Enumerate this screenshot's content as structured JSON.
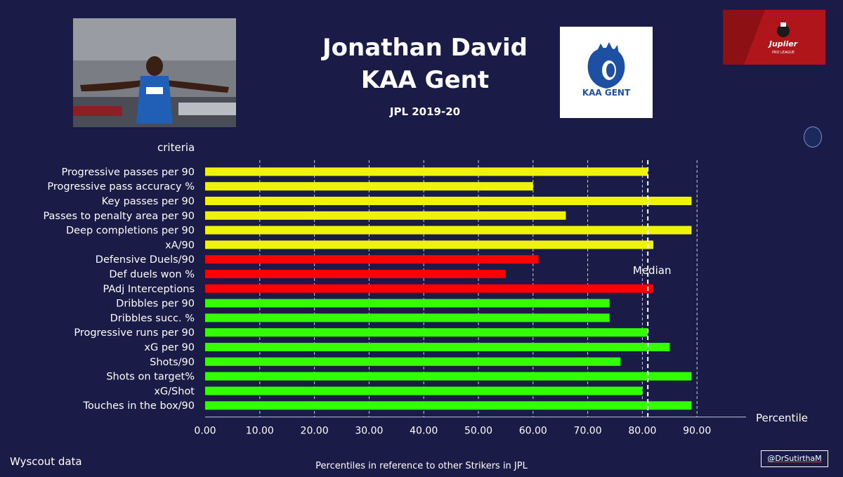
{
  "header": {
    "title_line1": "Jonathan David",
    "title_line2": "KAA Gent",
    "season": "JPL 2019-20",
    "club_logo_text": "KAA GENT",
    "league_logo_text": "Jupiler",
    "league_logo_sub": "PRO LEAGUE"
  },
  "footer": {
    "source": "Wyscout data",
    "footnote": "Percentiles in reference to other Strikers in JPL",
    "handle": "@DrSutirthaM"
  },
  "colors": {
    "background": "#1a1c47",
    "passing": "#eff20a",
    "defending": "#ff0000",
    "attacking": "#33ff00"
  },
  "chart_data": {
    "type": "bar",
    "orientation": "horizontal",
    "ylabel": "criteria",
    "xlabel": "Percentile",
    "xlim": [
      0,
      90
    ],
    "x_ticks": [
      "0.00",
      "10.00",
      "20.00",
      "30.00",
      "40.00",
      "50.00",
      "60.00",
      "70.00",
      "80.00",
      "90.00"
    ],
    "grid": "vertical dashed",
    "median": {
      "label": "Median",
      "value": 81
    },
    "categories": [
      "Progressive passes per 90",
      "Progressive pass accuracy %",
      "Key passes per 90",
      "Passes to penalty area per 90",
      "Deep completions per 90",
      "xA/90",
      "Defensive Duels/90",
      "Def duels won %",
      "PAdj Interceptions",
      "Dribbles per 90",
      "Dribbles succ. %",
      "Progressive runs per 90",
      "xG per 90",
      "Shots/90",
      "Shots on target%",
      "xG/Shot",
      "Touches in the box/90"
    ],
    "values": [
      81,
      60,
      89,
      66,
      89,
      82,
      61,
      55,
      82,
      74,
      74,
      81,
      85,
      76,
      89,
      80,
      89
    ],
    "bar_colors": [
      "#eff20a",
      "#eff20a",
      "#eff20a",
      "#eff20a",
      "#eff20a",
      "#eff20a",
      "#ff0000",
      "#ff0000",
      "#ff0000",
      "#33ff00",
      "#33ff00",
      "#33ff00",
      "#33ff00",
      "#33ff00",
      "#33ff00",
      "#33ff00",
      "#33ff00"
    ]
  }
}
